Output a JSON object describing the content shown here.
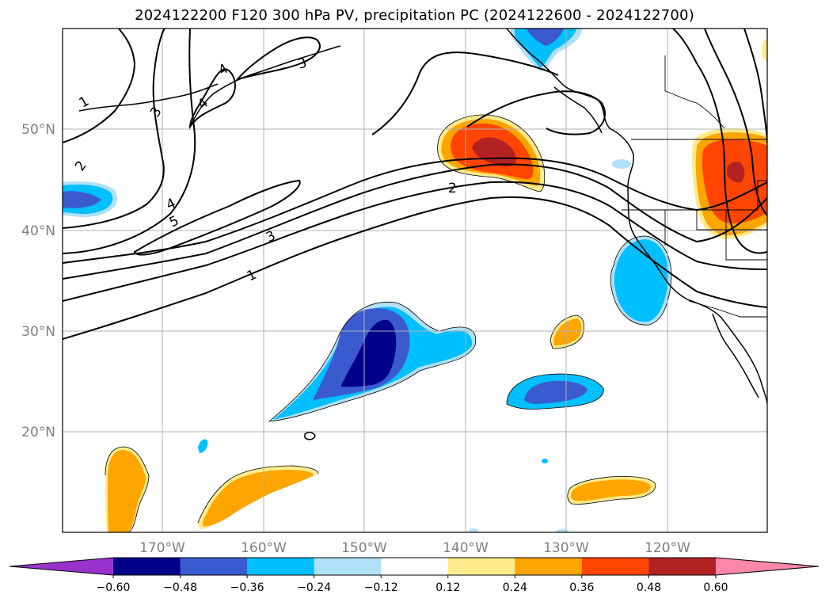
{
  "title": "2024122200 F120 300 hPa PV, precipitation PC (2024122600 - 2024122700)",
  "map": {
    "lon_ticks": [
      "170°W",
      "160°W",
      "150°W",
      "140°W",
      "130°W",
      "120°W"
    ],
    "lat_ticks": [
      "20°N",
      "30°N",
      "40°N",
      "50°N"
    ],
    "lon_range": [
      "180°W",
      "110°W"
    ],
    "lat_range": [
      "10°N",
      "60°N"
    ],
    "pv_contour_labels": [
      "1",
      "2",
      "3",
      "4",
      "5",
      "1",
      "2",
      "3",
      "4",
      "3",
      "2",
      "1"
    ],
    "contour_color": "#000000",
    "grid": true,
    "grid_color": "#b0b0b0"
  },
  "colorbar": {
    "labels": [
      "−0.60",
      "−0.48",
      "−0.36",
      "−0.24",
      "−0.12",
      "0.12",
      "0.24",
      "0.36",
      "0.48",
      "0.60"
    ],
    "colors": [
      "#9932cc",
      "#00008b",
      "#3a5bd0",
      "#00bfff",
      "#b0e0f8",
      "#ffffff",
      "#ffeb8c",
      "#ffa500",
      "#ff4500",
      "#b22222",
      "#ff88aa"
    ],
    "extend": "both",
    "orientation": "horizontal"
  }
}
